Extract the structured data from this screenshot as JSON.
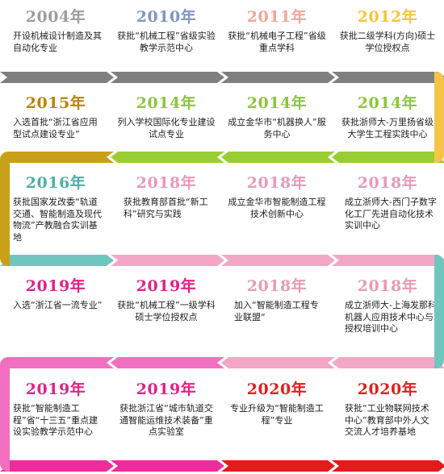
{
  "rows": [
    {
      "direction": "ltr",
      "items": [
        {
          "year": "2004年",
          "year_color": "#9e9e9e",
          "text": "开设机械设计制造及其自动化专业",
          "align": "left"
        },
        {
          "year": "2010年",
          "year_color": "#7f96c4",
          "text": "获批“机械工程”省级实验教学示范中心",
          "align": "center"
        },
        {
          "year": "2011年",
          "year_color": "#f0a89a",
          "text": "获批“机械电子工程”省级重点学科",
          "align": "center"
        },
        {
          "year": "2012年",
          "year_color": "#f4c63a",
          "text": "获批二级学科(方向)硕士学位授权点",
          "align": "center"
        }
      ],
      "arrows": [
        "#7f7f7f",
        "#7f7f7f",
        "#7f7f7f",
        "#7f7f7f"
      ]
    },
    {
      "direction": "rtl",
      "items": [
        {
          "year": "2015年",
          "year_color": "#b8860b",
          "text": "入选首批“浙江省应用型试点建设专业”",
          "align": "left"
        },
        {
          "year": "2014年",
          "year_color": "#8cc63e",
          "text": "列入学校国际化专业建设试点专业",
          "align": "center"
        },
        {
          "year": "2014年",
          "year_color": "#8cc63e",
          "text": "成立金华市“机器换人”服务中心",
          "align": "center"
        },
        {
          "year": "2014年",
          "year_color": "#8cc63e",
          "text": "获批浙师大-万里扬省级大学生工程实践中心",
          "align": "center"
        }
      ],
      "arrows": [
        "#c9a01a",
        "#9acd32",
        "#9acd32",
        "#9acd32"
      ]
    },
    {
      "direction": "ltr",
      "items": [
        {
          "year": "2016年",
          "year_color": "#4fb0a8",
          "text": "获批国家发改委“轨道交通、智能制造及现代物流”产教融合实训基地",
          "align": "left"
        },
        {
          "year": "2018年",
          "year_color": "#e89ab8",
          "text": "获批教育部首批“新工科”研究与实践",
          "align": "left"
        },
        {
          "year": "2018年",
          "year_color": "#e89ab8",
          "text": "成立金华市智能制造工程技术创新中心",
          "align": "center"
        },
        {
          "year": "2018年",
          "year_color": "#e89ab8",
          "text": "成立浙师大-西门子数字化工厂先进自动化技术实训中心",
          "align": "left"
        }
      ],
      "arrows": [
        "#6fc6bf",
        "#f2a7c6",
        "#f2a7c6",
        "#f2a7c6"
      ]
    },
    {
      "direction": "rtl",
      "items": [
        {
          "year": "2019年",
          "year_color": "#e0238a",
          "text": "入选“浙江省一流专业”",
          "align": "left"
        },
        {
          "year": "2019年",
          "year_color": "#e0238a",
          "text": "获批“机械工程”一级学科硕士学位授权点",
          "align": "center"
        },
        {
          "year": "2018年",
          "year_color": "#e89ab8",
          "text": "加入“智能制造工程专业联盟“",
          "align": "left"
        },
        {
          "year": "2018年",
          "year_color": "#e89ab8",
          "text": "成立浙师大-上海发那科机器人应用技术中心与授权培训中心",
          "align": "left"
        }
      ],
      "arrows": [
        "#f06fc0",
        "#f06fc0",
        "#f2a7c6",
        "#f2a7c6"
      ]
    },
    {
      "direction": "ltr",
      "items": [
        {
          "year": "2019年",
          "year_color": "#e0238a",
          "text": "获批“智能制造工程”省“十三五”重点建设实验教学示范中心",
          "align": "left"
        },
        {
          "year": "2019年",
          "year_color": "#e0238a",
          "text": "获批浙江省“城市轨道交通智能运维技术装备”重点实验室",
          "align": "center"
        },
        {
          "year": "2020年",
          "year_color": "#e02020",
          "text": "专业升级为“智能制造工程”专业",
          "align": "center"
        },
        {
          "year": "2020年",
          "year_color": "#e02020",
          "text": "获批“工业物联网技术中心”教育部中外人文交流人才培养基地",
          "align": "left"
        }
      ],
      "arrows": [
        "#ef2c9c",
        "#ef2c9c",
        "#e41b1b",
        "#e41b1b"
      ]
    }
  ],
  "connectors": [
    {
      "color": "#f6c547"
    },
    {
      "color": "#c9a01a"
    },
    {
      "color": "#6fc6bf"
    },
    {
      "color": "#f06fc0"
    }
  ]
}
